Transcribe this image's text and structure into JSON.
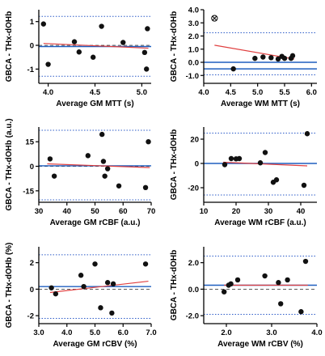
{
  "chart_data": [
    {
      "type": "scatter",
      "xlabel": "Average GM MTT (s)",
      "ylabel": "GBCA - THx-dOHb",
      "xlim": [
        3.9,
        5.1
      ],
      "ylim": [
        -1.6,
        1.5
      ],
      "xticks": [
        4.0,
        4.5,
        5.0
      ],
      "xtick_labels": [
        "4.0",
        "4.5",
        "5.0"
      ],
      "yticks": [
        -1,
        0,
        1
      ],
      "ytick_labels": [
        "-1",
        "0",
        "1"
      ],
      "points": [
        {
          "x": 3.95,
          "y": 0.9
        },
        {
          "x": 4.0,
          "y": -0.8
        },
        {
          "x": 4.28,
          "y": 0.15
        },
        {
          "x": 4.33,
          "y": -0.28
        },
        {
          "x": 4.48,
          "y": -0.5
        },
        {
          "x": 4.57,
          "y": 0.8
        },
        {
          "x": 4.8,
          "y": 0.12
        },
        {
          "x": 5.03,
          "y": -0.3
        },
        {
          "x": 5.05,
          "y": -1.0
        },
        {
          "x": 5.06,
          "y": 0.7
        }
      ],
      "bias": -0.05,
      "loa": [
        1.22,
        -1.3
      ],
      "regression": {
        "x": [
          3.95,
          5.07
        ],
        "y": [
          0.08,
          -0.12
        ]
      },
      "grid": false
    },
    {
      "type": "scatter",
      "xlabel": "Average WM MTT (s)",
      "ylabel": "GBCA - THx-dOHb",
      "xlim": [
        4.0,
        6.1
      ],
      "ylim": [
        -1.6,
        4.0
      ],
      "xticks": [
        4.0,
        4.5,
        5.0,
        5.5,
        6.0
      ],
      "xtick_labels": [
        "4.0",
        "4.5",
        "5.0",
        "5.5",
        "6.0"
      ],
      "yticks": [
        -1,
        0,
        1,
        2,
        3,
        4
      ],
      "ytick_labels": [
        "-1.0",
        "0.0",
        "1.0",
        "2.0",
        "3.0",
        "4.0"
      ],
      "points": [
        {
          "x": 4.55,
          "y": -0.5
        },
        {
          "x": 4.95,
          "y": 0.3
        },
        {
          "x": 5.1,
          "y": 0.4
        },
        {
          "x": 5.25,
          "y": 0.35
        },
        {
          "x": 5.38,
          "y": 0.25
        },
        {
          "x": 5.45,
          "y": 0.45
        },
        {
          "x": 5.5,
          "y": 0.3
        },
        {
          "x": 5.62,
          "y": 0.3
        },
        {
          "x": 5.65,
          "y": 0.5
        }
      ],
      "outlier": {
        "x": 4.2,
        "y": 3.35
      },
      "bias": 0.0,
      "loa": [
        2.25,
        -0.95
      ],
      "extra_line": -0.5,
      "regression": {
        "x": [
          4.2,
          5.68
        ],
        "y": [
          1.3,
          0.25
        ]
      },
      "grid": false
    },
    {
      "type": "scatter",
      "xlabel": "Average GM rCBF (a.u.)",
      "ylabel": "GBCA - THx-dOHb (a.u.)",
      "xlim": [
        30,
        70
      ],
      "ylim": [
        -22,
        24
      ],
      "xticks": [
        30,
        40,
        50,
        60,
        70
      ],
      "xtick_labels": [
        "30",
        "40",
        "50",
        "60",
        "70"
      ],
      "yticks": [
        -15,
        0,
        15
      ],
      "ytick_labels": [
        "-15",
        "0",
        "15"
      ],
      "points": [
        {
          "x": 34.0,
          "y": 4.5
        },
        {
          "x": 35.5,
          "y": -6.0
        },
        {
          "x": 47.5,
          "y": 6.5
        },
        {
          "x": 52.5,
          "y": 19.5
        },
        {
          "x": 53.0,
          "y": 3.0
        },
        {
          "x": 53.5,
          "y": -6.0
        },
        {
          "x": 54.5,
          "y": -1.5
        },
        {
          "x": 58.5,
          "y": -12.0
        },
        {
          "x": 68.0,
          "y": -13.0
        },
        {
          "x": 69.0,
          "y": 15.0
        }
      ],
      "bias": 0.3,
      "loa": [
        22.0,
        -20.5
      ],
      "regression": {
        "x": [
          33,
          69.5
        ],
        "y": [
          1.5,
          -0.8
        ]
      },
      "grid": false
    },
    {
      "type": "scatter",
      "xlabel": "Average WM rCBF (a.u.)",
      "ylabel": "GBCA - THx-dOHb",
      "xlim": [
        10,
        45
      ],
      "ylim": [
        -32,
        30
      ],
      "xticks": [
        10,
        20,
        30,
        40
      ],
      "xtick_labels": [
        "10",
        "20",
        "30",
        "40"
      ],
      "yticks": [
        -20,
        0,
        20
      ],
      "ytick_labels": [
        "-20",
        "0",
        "20"
      ],
      "points": [
        {
          "x": 16.5,
          "y": -1.0
        },
        {
          "x": 18.5,
          "y": 4.0
        },
        {
          "x": 20.0,
          "y": 3.8
        },
        {
          "x": 21.0,
          "y": 4.0
        },
        {
          "x": 27.5,
          "y": 0.5
        },
        {
          "x": 29.0,
          "y": 9.0
        },
        {
          "x": 31.5,
          "y": -15.5
        },
        {
          "x": 32.5,
          "y": -13.5
        },
        {
          "x": 41.0,
          "y": -18.0
        },
        {
          "x": 42.0,
          "y": 24.5
        }
      ],
      "bias": 0.0,
      "loa": [
        25.0,
        -26.0
      ],
      "regression": {
        "x": [
          16,
          42
        ],
        "y": [
          1.0,
          -2.0
        ]
      },
      "grid": false
    },
    {
      "type": "scatter",
      "xlabel": "Average GM rCBV (%)",
      "ylabel": "GBCA - THx-dOHb (%)",
      "xlim": [
        3.0,
        7.0
      ],
      "ylim": [
        -2.6,
        3.2
      ],
      "xticks": [
        3.0,
        4.0,
        5.0,
        6.0,
        7.0
      ],
      "xtick_labels": [
        "3.0",
        "4.0",
        "5.0",
        "6.0",
        "7.0"
      ],
      "yticks": [
        -2,
        0,
        2
      ],
      "ytick_labels": [
        "-2",
        "0",
        "2"
      ],
      "points": [
        {
          "x": 3.45,
          "y": 0.1
        },
        {
          "x": 3.6,
          "y": -0.35
        },
        {
          "x": 4.5,
          "y": 1.05
        },
        {
          "x": 4.6,
          "y": 0.2
        },
        {
          "x": 5.0,
          "y": 1.9
        },
        {
          "x": 5.2,
          "y": -1.4
        },
        {
          "x": 5.45,
          "y": 0.5
        },
        {
          "x": 5.6,
          "y": -1.8
        },
        {
          "x": 5.65,
          "y": 0.4
        },
        {
          "x": 6.8,
          "y": 1.9
        }
      ],
      "bias": 0.2,
      "loa": [
        2.6,
        -2.2
      ],
      "regression": {
        "x": [
          3.4,
          6.9
        ],
        "y": [
          -0.25,
          0.6
        ]
      },
      "grid": false
    },
    {
      "type": "scatter",
      "xlabel": "Average WM rCBV (%)",
      "ylabel": "GBCA - THx-dOHb",
      "xlim": [
        1.5,
        4.0
      ],
      "ylim": [
        -2.6,
        3.2
      ],
      "xticks": [
        2.0,
        3.0,
        4.0
      ],
      "xtick_labels": [
        "2.0",
        "3.0",
        "4.0"
      ],
      "yticks": [
        -2,
        0,
        2
      ],
      "ytick_labels": [
        "-2.0",
        "0.0",
        "2.0"
      ],
      "points": [
        {
          "x": 1.95,
          "y": -0.2
        },
        {
          "x": 2.05,
          "y": 0.3
        },
        {
          "x": 2.1,
          "y": 0.4
        },
        {
          "x": 2.25,
          "y": 0.7
        },
        {
          "x": 2.85,
          "y": 1.0
        },
        {
          "x": 3.15,
          "y": 0.5
        },
        {
          "x": 3.2,
          "y": -1.1
        },
        {
          "x": 3.35,
          "y": 0.7
        },
        {
          "x": 3.65,
          "y": -1.7
        },
        {
          "x": 3.75,
          "y": 2.1
        }
      ],
      "bias": 0.3,
      "loa": [
        2.5,
        -1.9
      ],
      "regression": {
        "x": [
          1.95,
          3.8
        ],
        "y": [
          0.3,
          0.3
        ]
      },
      "grid": false
    }
  ],
  "colors": {
    "points": "#111111",
    "bias_line": "#1f5fbf",
    "loa_line": "#2e5cc8",
    "zero_line": "#444444",
    "regression": "#e04040"
  }
}
